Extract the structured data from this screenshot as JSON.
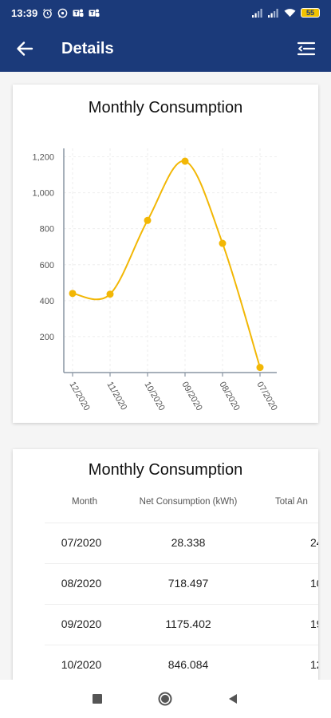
{
  "status_bar": {
    "time": "13:39",
    "battery": "55",
    "icons": [
      "alarm-icon",
      "whatsapp-icon",
      "teams-icon",
      "teams-icon",
      "signal-icon",
      "signal-icon",
      "wifi-icon",
      "battery-icon"
    ]
  },
  "header": {
    "title": "Details",
    "back_icon": "arrow-left-icon",
    "menu_icon": "menu-icon"
  },
  "chart_card": {
    "title": "Monthly Consumption"
  },
  "chart_data": {
    "type": "line",
    "title": "Monthly Consumption",
    "categories": [
      "12/2020",
      "11/2020",
      "10/2020",
      "09/2020",
      "08/2020",
      "07/2020"
    ],
    "values": [
      440,
      436,
      846.084,
      1175.402,
      718.497,
      28.338
    ],
    "yticks": [
      "200",
      "400",
      "600",
      "800",
      "1,000",
      "1,200"
    ],
    "ylim": [
      0,
      1220
    ],
    "grid": true,
    "color": "#f2b705"
  },
  "table_card": {
    "title": "Monthly Consumption",
    "columns": [
      "Month",
      "Net Consumption (kWh)",
      "Total An"
    ],
    "rows": [
      {
        "month": "07/2020",
        "net": "28.338",
        "total": "24."
      },
      {
        "month": "08/2020",
        "net": "718.497",
        "total": "10"
      },
      {
        "month": "09/2020",
        "net": "1175.402",
        "total": "19"
      },
      {
        "month": "10/2020",
        "net": "846.084",
        "total": "12"
      }
    ]
  },
  "nav": {
    "recents_icon": "square-icon",
    "home_icon": "circle-icon",
    "back_icon": "triangle-back-icon"
  },
  "colors": {
    "primary": "#1b3a7a",
    "accent": "#f2b705"
  }
}
